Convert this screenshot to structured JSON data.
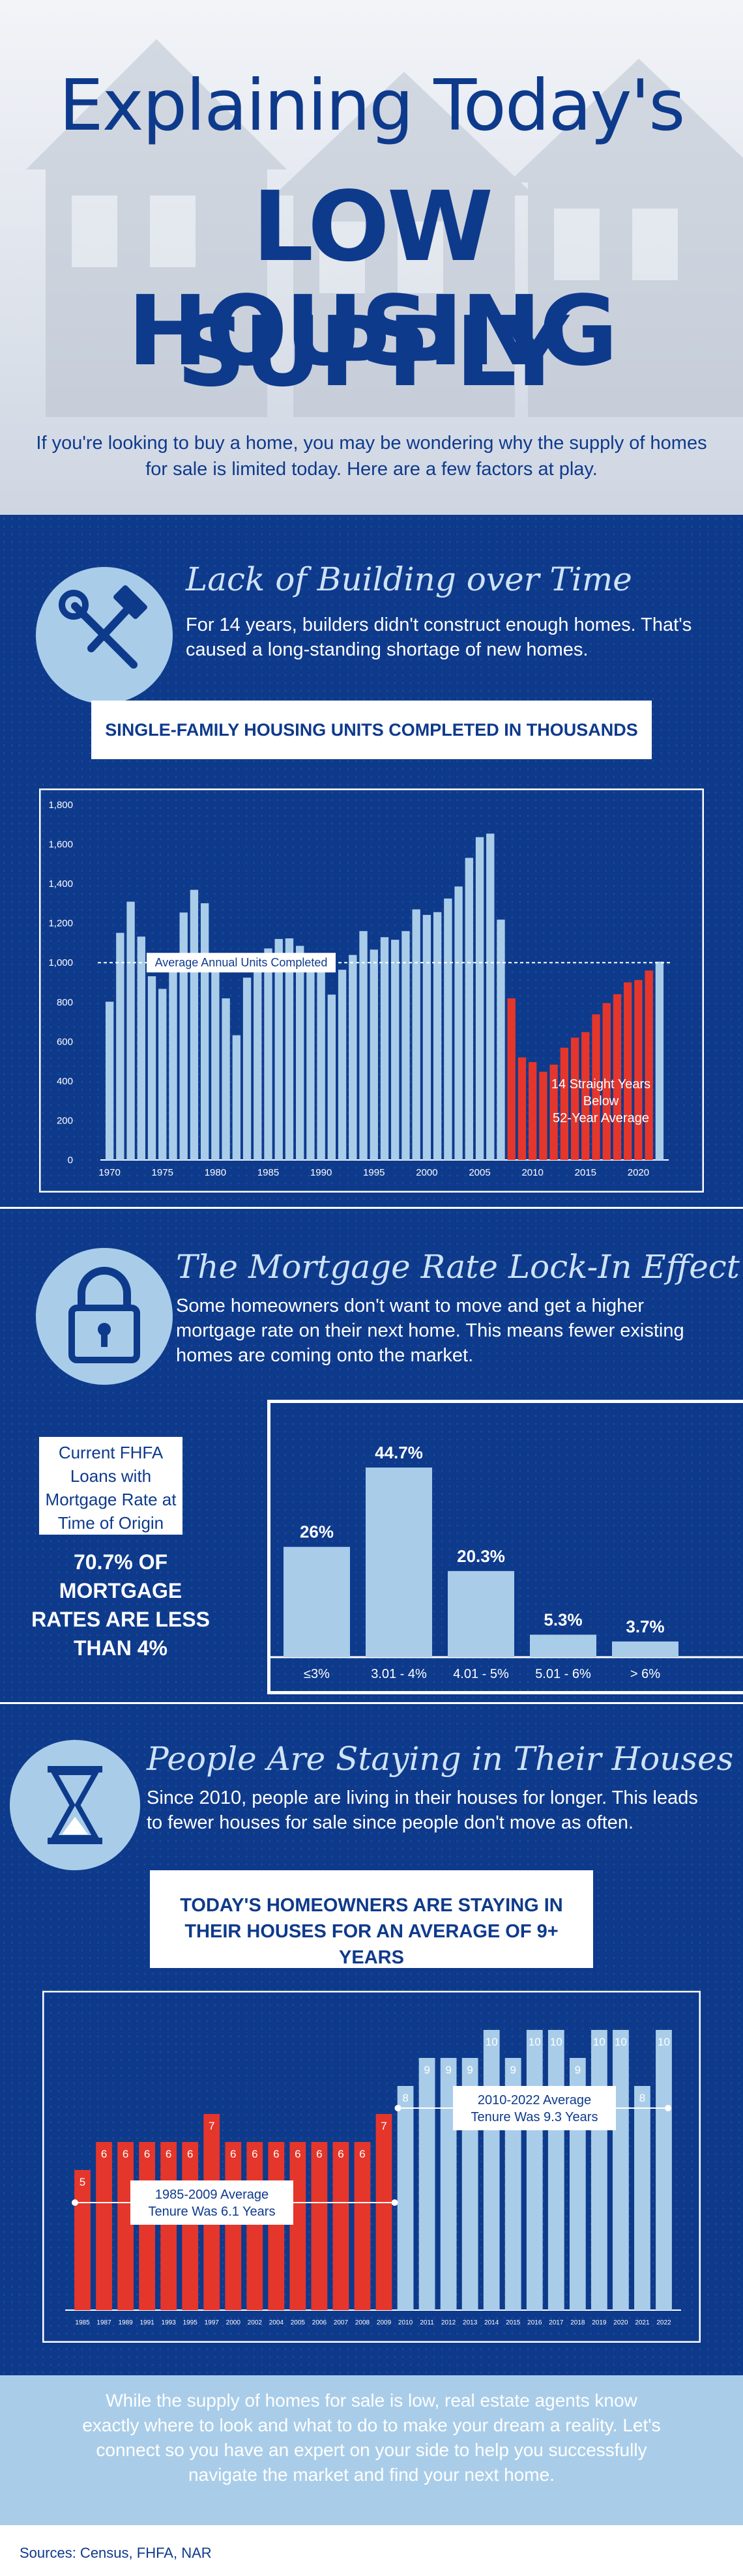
{
  "header": {
    "title_line1": "Explaining Today's",
    "title_line2": "LOW HOUSING",
    "title_line3": "SUPPLY",
    "intro": "If you're looking to buy a home, you may be wondering why the supply of homes for sale is limited today. Here are a few factors at play."
  },
  "section1": {
    "heading": "Lack of Building over Time",
    "body": "For 14 years, builders didn't construct enough homes. That's caused a long-standing shortage of new homes.",
    "icon": "tools-icon"
  },
  "section2": {
    "heading": "The Mortgage Rate Lock-In Effect",
    "body": "Some homeowners don't want to move and get a higher mortgage rate on their next home. This means fewer existing homes are coming onto the market.",
    "icon": "padlock-icon",
    "side_box": "Current FHFA Loans with Mortgage Rate at Time of Origin",
    "stat": "70.7% OF MORTGAGE RATES ARE LESS THAN 4%"
  },
  "section3": {
    "heading": "People Are Staying in Their Houses Longer",
    "body": "Since 2010, people are living in their houses for longer. This leads to fewer houses for sale since people don't move as often.",
    "icon": "hourglass-icon"
  },
  "footer": {
    "text": "While the supply of homes for sale is low, real estate agents know exactly where to look and what to do to make your dream a reality. Let's connect so you have an expert on your side to help you successfully navigate the market and find your next home.",
    "sources": "Sources: Census, FHFA, NAR"
  },
  "colors": {
    "navy": "#0e3a8c",
    "light_blue": "#a9cde9",
    "red": "#e5362b",
    "white": "#ffffff"
  },
  "chart_data": [
    {
      "type": "bar",
      "title": "SINGLE-FAMILY HOUSING UNITS COMPLETED IN THOUSANDS",
      "x": [
        1970,
        1971,
        1972,
        1973,
        1974,
        1975,
        1976,
        1977,
        1978,
        1979,
        1980,
        1981,
        1982,
        1983,
        1984,
        1985,
        1986,
        1987,
        1988,
        1989,
        1990,
        1991,
        1992,
        1993,
        1994,
        1995,
        1996,
        1997,
        1998,
        1999,
        2000,
        2001,
        2002,
        2003,
        2004,
        2005,
        2006,
        2007,
        2008,
        2009,
        2010,
        2011,
        2012,
        2013,
        2014,
        2015,
        2016,
        2017,
        2018,
        2019,
        2020,
        2021,
        2022
      ],
      "values": [
        802,
        1151,
        1309,
        1132,
        931,
        867,
        1026,
        1254,
        1369,
        1301,
        957,
        819,
        632,
        924,
        1025,
        1072,
        1120,
        1123,
        1085,
        1026,
        966,
        838,
        964,
        1039,
        1160,
        1066,
        1129,
        1116,
        1160,
        1270,
        1242,
        1256,
        1325,
        1386,
        1531,
        1636,
        1654,
        1218,
        819,
        520,
        496,
        447,
        483,
        569,
        620,
        648,
        738,
        795,
        840,
        900,
        912,
        960,
        1005
      ],
      "highlight_from": 2008,
      "xticks": [
        1970,
        1975,
        1980,
        1985,
        1990,
        1995,
        2000,
        2005,
        2010,
        2015,
        2020
      ],
      "yticks": [
        0,
        200,
        400,
        600,
        800,
        1000,
        1200,
        1400,
        1600,
        1800
      ],
      "ytick_labels": [
        "0",
        "200",
        "400",
        "600",
        "800",
        "1,000",
        "1,200",
        "1,400",
        "1,600",
        "1,800"
      ],
      "ylim": [
        0,
        1800
      ],
      "reference_line": {
        "value": 1000,
        "label": "Average Annual Units Completed"
      },
      "annotation": "14 Straight Years Below 52-Year Average"
    },
    {
      "type": "bar",
      "categories": [
        "≤3%",
        "3.01 - 4%",
        "4.01 - 5%",
        "5.01 - 6%",
        "> 6%"
      ],
      "values": [
        26,
        44.7,
        20.3,
        5.3,
        3.7
      ],
      "labels": [
        "26%",
        "44.7%",
        "20.3%",
        "5.3%",
        "3.7%"
      ],
      "ylim": [
        0,
        50
      ]
    },
    {
      "type": "bar",
      "title": "TODAY'S HOMEOWNERS ARE STAYING IN THEIR HOUSES FOR AN AVERAGE OF 9+ YEARS",
      "categories": [
        "1985",
        "1987",
        "1989",
        "1991",
        "1993",
        "1995",
        "1997",
        "2000",
        "2002",
        "2004",
        "2005",
        "2006",
        "2007",
        "2008",
        "2009",
        "2010",
        "2011",
        "2012",
        "2013",
        "2014",
        "2015",
        "2016",
        "2017",
        "2018",
        "2019",
        "2020",
        "2021",
        "2022"
      ],
      "values": [
        5,
        6,
        6,
        6,
        6,
        6,
        7,
        6,
        6,
        6,
        6,
        6,
        6,
        6,
        7,
        8,
        9,
        9,
        9,
        10,
        9,
        10,
        10,
        9,
        10,
        10,
        8,
        10
      ],
      "highlight_until": "2009",
      "ylim": [
        0,
        10
      ],
      "annotations": [
        "1985-2009 Average Tenure Was 6.1 Years",
        "2010-2022 Average Tenure Was 9.3 Years"
      ]
    }
  ]
}
